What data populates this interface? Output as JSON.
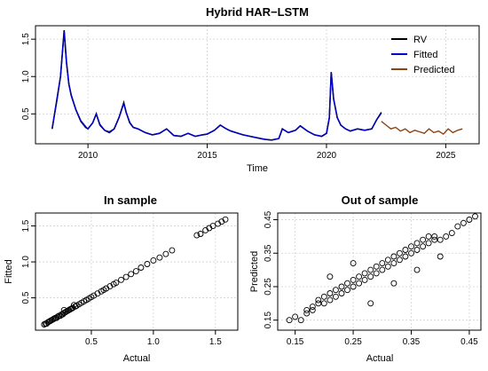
{
  "chart_data": [
    {
      "type": "line",
      "title": "Hybrid HAR−LSTM",
      "xlabel": "Time",
      "ylabel": "",
      "xlim": [
        2007.8,
        2026.4
      ],
      "ylim": [
        0.1,
        1.68
      ],
      "xticks": [
        2010,
        2015,
        2020,
        2025
      ],
      "xtick_labels": [
        "2010",
        "2015",
        "2020",
        "2025"
      ],
      "yticks": [
        0.5,
        1.0,
        1.5
      ],
      "ytick_labels": [
        "0.5",
        "1.0",
        "1.5"
      ],
      "grid": true,
      "legend": "top-right",
      "series": [
        {
          "name": "RV",
          "color": "#000000",
          "x": [
            2008.5,
            2008.7,
            2008.85,
            2009.0,
            2009.1,
            2009.2,
            2009.3,
            2009.5,
            2009.7,
            2009.9,
            2010.0,
            2010.2,
            2010.35,
            2010.5,
            2010.7,
            2010.9,
            2011.1,
            2011.3,
            2011.5,
            2011.6,
            2011.75,
            2011.9,
            2012.1,
            2012.4,
            2012.7,
            2013.0,
            2013.3,
            2013.6,
            2013.9,
            2014.2,
            2014.5,
            2014.8,
            2015.0,
            2015.3,
            2015.55,
            2015.8,
            2016.0,
            2016.2,
            2016.5,
            2016.8,
            2017.1,
            2017.4,
            2017.7,
            2018.0,
            2018.15,
            2018.4,
            2018.7,
            2018.9,
            2019.2,
            2019.5,
            2019.8,
            2020.0,
            2020.12,
            2020.2,
            2020.3,
            2020.45,
            2020.6,
            2020.8,
            2021.0,
            2021.3,
            2021.6,
            2021.9,
            2022.1,
            2022.3
          ],
          "y": [
            0.3,
            0.7,
            1.0,
            1.62,
            1.2,
            0.9,
            0.75,
            0.55,
            0.4,
            0.32,
            0.3,
            0.38,
            0.5,
            0.35,
            0.28,
            0.25,
            0.3,
            0.45,
            0.65,
            0.52,
            0.38,
            0.32,
            0.3,
            0.25,
            0.22,
            0.24,
            0.3,
            0.21,
            0.2,
            0.24,
            0.2,
            0.22,
            0.23,
            0.28,
            0.35,
            0.3,
            0.27,
            0.25,
            0.22,
            0.2,
            0.18,
            0.16,
            0.15,
            0.17,
            0.3,
            0.25,
            0.28,
            0.34,
            0.27,
            0.22,
            0.2,
            0.24,
            0.45,
            1.06,
            0.7,
            0.45,
            0.35,
            0.3,
            0.27,
            0.3,
            0.28,
            0.3,
            0.42,
            0.52
          ]
        },
        {
          "name": "Fitted",
          "color": "#0000cd",
          "x": [
            2008.5,
            2008.7,
            2008.85,
            2009.0,
            2009.1,
            2009.2,
            2009.3,
            2009.5,
            2009.7,
            2009.9,
            2010.0,
            2010.2,
            2010.35,
            2010.5,
            2010.7,
            2010.9,
            2011.1,
            2011.3,
            2011.5,
            2011.6,
            2011.75,
            2011.9,
            2012.1,
            2012.4,
            2012.7,
            2013.0,
            2013.3,
            2013.6,
            2013.9,
            2014.2,
            2014.5,
            2014.8,
            2015.0,
            2015.3,
            2015.55,
            2015.8,
            2016.0,
            2016.2,
            2016.5,
            2016.8,
            2017.1,
            2017.4,
            2017.7,
            2018.0,
            2018.15,
            2018.4,
            2018.7,
            2018.9,
            2019.2,
            2019.5,
            2019.8,
            2020.0,
            2020.12,
            2020.2,
            2020.3,
            2020.45,
            2020.6,
            2020.8,
            2021.0,
            2021.3,
            2021.6,
            2021.9,
            2022.1,
            2022.3
          ],
          "y": [
            0.31,
            0.68,
            1.0,
            1.6,
            1.18,
            0.9,
            0.74,
            0.55,
            0.41,
            0.33,
            0.3,
            0.38,
            0.5,
            0.36,
            0.28,
            0.26,
            0.3,
            0.45,
            0.64,
            0.52,
            0.39,
            0.32,
            0.3,
            0.25,
            0.22,
            0.24,
            0.3,
            0.21,
            0.2,
            0.24,
            0.2,
            0.22,
            0.23,
            0.28,
            0.35,
            0.3,
            0.27,
            0.25,
            0.22,
            0.2,
            0.18,
            0.16,
            0.15,
            0.17,
            0.3,
            0.25,
            0.28,
            0.34,
            0.27,
            0.22,
            0.2,
            0.24,
            0.45,
            1.05,
            0.7,
            0.45,
            0.35,
            0.3,
            0.27,
            0.3,
            0.28,
            0.3,
            0.42,
            0.51
          ]
        },
        {
          "name": "Predicted",
          "color": "#8b4513",
          "x": [
            2022.3,
            2022.5,
            2022.7,
            2022.9,
            2023.1,
            2023.3,
            2023.5,
            2023.7,
            2023.9,
            2024.1,
            2024.3,
            2024.5,
            2024.7,
            2024.9,
            2025.1,
            2025.3,
            2025.5,
            2025.7
          ],
          "y": [
            0.4,
            0.35,
            0.3,
            0.32,
            0.27,
            0.3,
            0.25,
            0.28,
            0.26,
            0.24,
            0.3,
            0.25,
            0.27,
            0.23,
            0.3,
            0.25,
            0.28,
            0.3
          ]
        }
      ]
    },
    {
      "type": "scatter",
      "title": "In sample",
      "xlabel": "Actual",
      "ylabel": "Fitted",
      "xlim": [
        0.05,
        1.68
      ],
      "ylim": [
        0.05,
        1.68
      ],
      "xticks": [
        0.5,
        1.0,
        1.5
      ],
      "xtick_labels": [
        "0.5",
        "1.0",
        "1.5"
      ],
      "yticks": [
        0.5,
        1.0,
        1.5
      ],
      "ytick_labels": [
        "0.5",
        "1.0",
        "1.5"
      ],
      "grid": true,
      "x": [
        0.12,
        0.13,
        0.14,
        0.15,
        0.16,
        0.17,
        0.18,
        0.19,
        0.2,
        0.21,
        0.22,
        0.23,
        0.24,
        0.25,
        0.26,
        0.27,
        0.28,
        0.29,
        0.3,
        0.31,
        0.32,
        0.33,
        0.34,
        0.35,
        0.37,
        0.38,
        0.4,
        0.42,
        0.44,
        0.46,
        0.48,
        0.5,
        0.52,
        0.55,
        0.58,
        0.6,
        0.62,
        0.65,
        0.68,
        0.7,
        0.74,
        0.78,
        0.82,
        0.86,
        0.9,
        0.95,
        1.0,
        1.05,
        1.1,
        1.15,
        1.35,
        1.38,
        1.42,
        1.45,
        1.48,
        1.52,
        1.55,
        1.58,
        0.28,
        0.36
      ],
      "y": [
        0.13,
        0.14,
        0.14,
        0.16,
        0.17,
        0.18,
        0.19,
        0.2,
        0.21,
        0.22,
        0.22,
        0.24,
        0.25,
        0.25,
        0.27,
        0.27,
        0.29,
        0.3,
        0.31,
        0.32,
        0.33,
        0.34,
        0.35,
        0.36,
        0.38,
        0.39,
        0.41,
        0.43,
        0.45,
        0.47,
        0.49,
        0.51,
        0.53,
        0.56,
        0.59,
        0.61,
        0.63,
        0.66,
        0.69,
        0.71,
        0.75,
        0.79,
        0.83,
        0.87,
        0.92,
        0.97,
        1.02,
        1.06,
        1.11,
        1.16,
        1.37,
        1.39,
        1.44,
        1.47,
        1.5,
        1.53,
        1.56,
        1.59,
        0.33,
        0.4
      ]
    },
    {
      "type": "scatter",
      "title": "Out of sample",
      "xlabel": "Actual",
      "ylabel": "Predicted",
      "xlim": [
        0.12,
        0.47
      ],
      "ylim": [
        0.12,
        0.47
      ],
      "xticks": [
        0.15,
        0.25,
        0.35,
        0.45
      ],
      "xtick_labels": [
        "0.15",
        "0.25",
        "0.35",
        "0.45"
      ],
      "yticks": [
        0.15,
        0.25,
        0.35,
        0.45
      ],
      "ytick_labels": [
        "0.15",
        "0.25",
        "0.35",
        "0.45"
      ],
      "grid": true,
      "x": [
        0.14,
        0.15,
        0.16,
        0.17,
        0.17,
        0.18,
        0.18,
        0.19,
        0.19,
        0.2,
        0.2,
        0.21,
        0.21,
        0.22,
        0.22,
        0.23,
        0.23,
        0.24,
        0.24,
        0.25,
        0.25,
        0.26,
        0.26,
        0.27,
        0.27,
        0.28,
        0.28,
        0.29,
        0.29,
        0.3,
        0.3,
        0.31,
        0.31,
        0.32,
        0.32,
        0.33,
        0.33,
        0.34,
        0.34,
        0.35,
        0.35,
        0.36,
        0.36,
        0.37,
        0.37,
        0.38,
        0.38,
        0.39,
        0.39,
        0.4,
        0.41,
        0.42,
        0.43,
        0.44,
        0.45,
        0.46,
        0.21,
        0.25,
        0.32,
        0.36,
        0.4,
        0.28
      ],
      "y": [
        0.15,
        0.16,
        0.15,
        0.18,
        0.17,
        0.19,
        0.18,
        0.2,
        0.21,
        0.2,
        0.22,
        0.21,
        0.23,
        0.22,
        0.24,
        0.23,
        0.25,
        0.24,
        0.26,
        0.25,
        0.27,
        0.26,
        0.28,
        0.27,
        0.29,
        0.28,
        0.3,
        0.29,
        0.31,
        0.3,
        0.32,
        0.31,
        0.33,
        0.32,
        0.34,
        0.33,
        0.35,
        0.34,
        0.36,
        0.35,
        0.37,
        0.36,
        0.38,
        0.37,
        0.39,
        0.38,
        0.4,
        0.39,
        0.4,
        0.39,
        0.4,
        0.41,
        0.43,
        0.44,
        0.45,
        0.46,
        0.28,
        0.32,
        0.26,
        0.3,
        0.34,
        0.2
      ]
    }
  ]
}
